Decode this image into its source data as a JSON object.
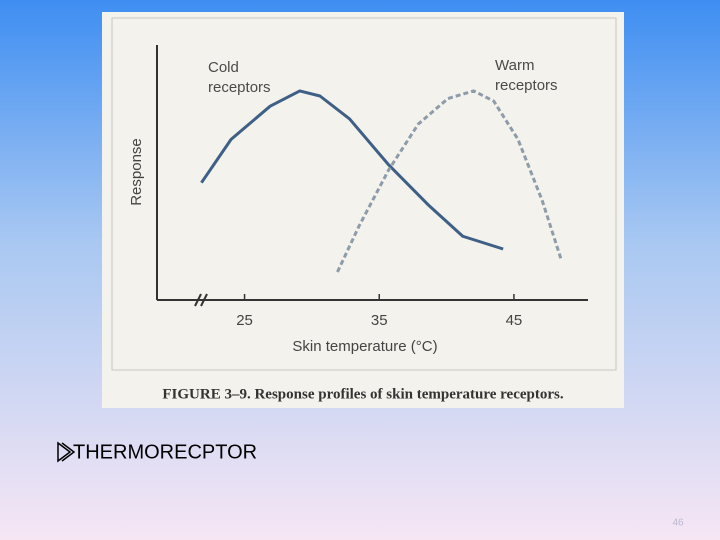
{
  "chart_data": {
    "type": "line",
    "caption": "FIGURE 3–9. Response profiles of skin temperature receptors.",
    "x_label": "Skin temperature (°C)",
    "y_label": "Response",
    "xlim": [
      18.5,
      50.5
    ],
    "xticks": [
      25,
      35,
      45
    ],
    "ylim": [
      0,
      100
    ],
    "series": [
      {
        "name": "Cold receptors",
        "color": "#3e5f86",
        "style": "solid",
        "x": [
          21.8,
          24.0,
          26.9,
          29.1,
          30.6,
          32.8,
          35.7,
          38.7,
          41.2,
          44.2
        ],
        "values": [
          46,
          63,
          76,
          82,
          80,
          71,
          53,
          37,
          25,
          20
        ]
      },
      {
        "name": "Warm receptors",
        "color": "#8d9cab",
        "style": "dashed",
        "x": [
          31.9,
          33.5,
          35.7,
          37.9,
          40.1,
          42.0,
          43.5,
          45.3,
          47.1,
          48.5
        ],
        "values": [
          11,
          29,
          51,
          69,
          79,
          82,
          78,
          63,
          39,
          16
        ]
      }
    ]
  },
  "slide": {
    "bullet": "THERMORECPTOR",
    "page_number": "46"
  }
}
